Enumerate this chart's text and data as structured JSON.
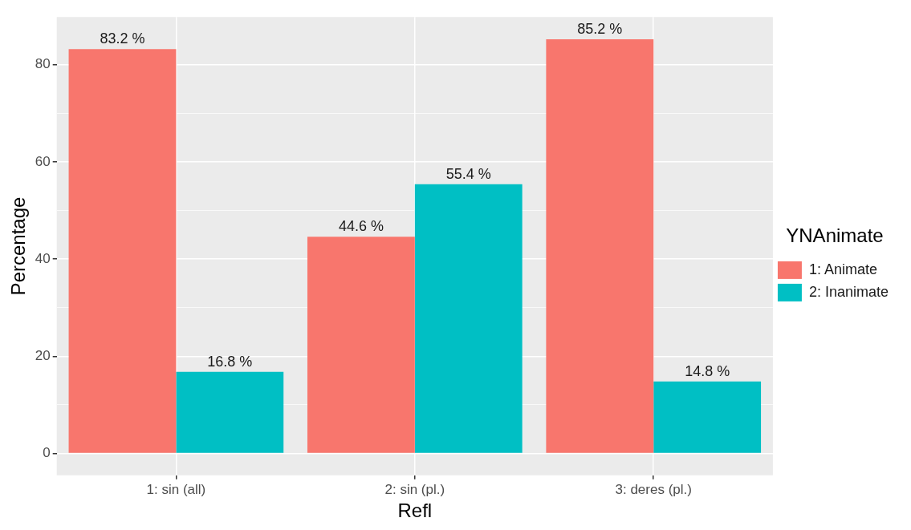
{
  "chart_data": {
    "type": "bar",
    "xlabel": "Refl",
    "ylabel": "Percentage",
    "legend_title": "YNAnimate",
    "legend": "right",
    "grid": true,
    "categories": [
      "1: sin (all)",
      "2: sin (pl.)",
      "3: deres (pl.)"
    ],
    "series": [
      {
        "name": "1: Animate",
        "color": "#f8766d",
        "values": [
          83.2,
          44.6,
          85.2
        ],
        "value_labels": [
          "83.2 %",
          "44.6 %",
          "85.2 %"
        ]
      },
      {
        "name": "2: Inanimate",
        "color": "#00bfc4",
        "values": [
          16.8,
          55.4,
          14.8
        ],
        "value_labels": [
          "16.8 %",
          "55.4 %",
          "14.8 %"
        ]
      }
    ],
    "ylim": [
      -4.5,
      89.8
    ],
    "yticks": [
      0,
      {
        "value": 10,
        "label": null
      },
      20,
      {
        "value": 30,
        "label": null
      },
      40,
      {
        "value": 50,
        "label": null
      },
      60,
      {
        "value": 70,
        "label": null
      },
      80
    ]
  }
}
